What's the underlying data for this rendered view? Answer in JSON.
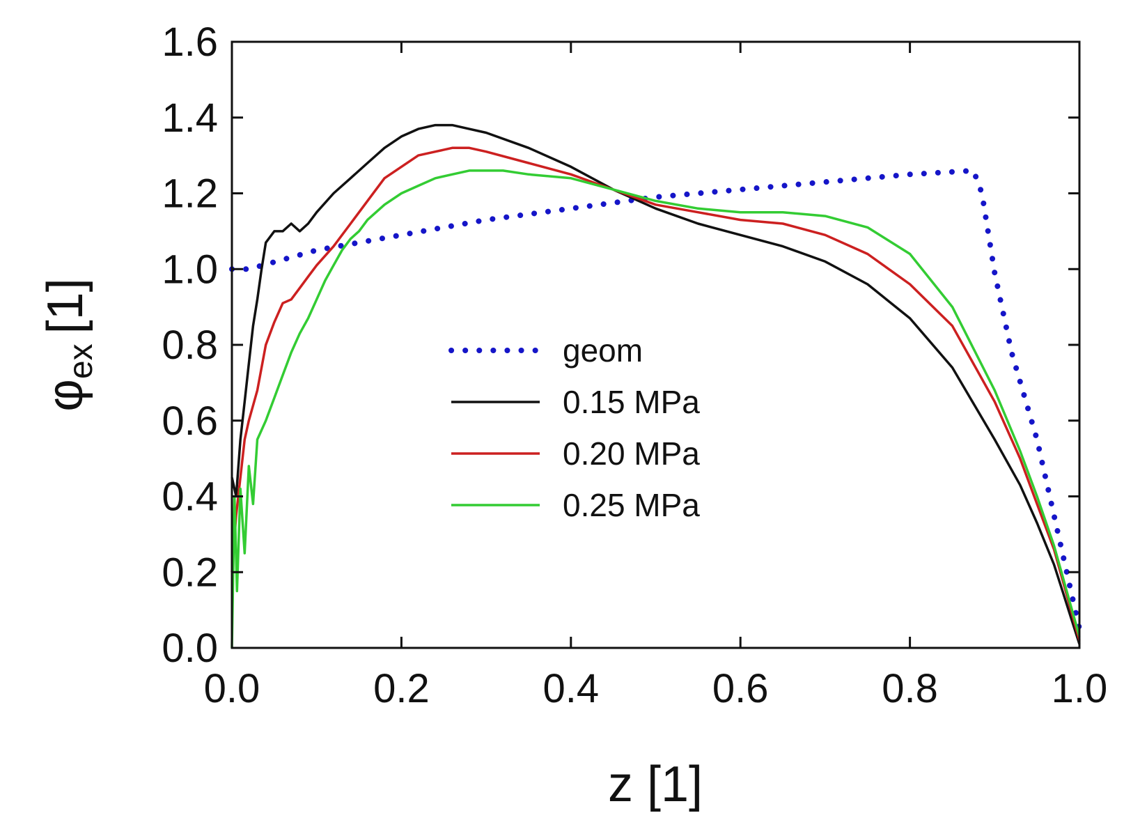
{
  "chart_data": {
    "type": "line",
    "title": "",
    "xlabel": "z [1]",
    "ylabel_main": "φ",
    "ylabel_sub": "ex",
    "ylabel_unit": "[1]",
    "xlim": [
      0.0,
      1.0
    ],
    "ylim": [
      0.0,
      1.6
    ],
    "xticks": [
      "0.0",
      "0.2",
      "0.4",
      "0.6",
      "0.8",
      "1.0"
    ],
    "yticks": [
      "0.0",
      "0.2",
      "0.4",
      "0.6",
      "0.8",
      "1.0",
      "1.2",
      "1.4",
      "1.6"
    ],
    "grid": false,
    "legend_position": "center",
    "series": [
      {
        "name": "geom",
        "color": "#1515c8",
        "style": "dotted",
        "x": [
          0.0,
          0.02,
          0.1,
          0.2,
          0.3,
          0.4,
          0.5,
          0.6,
          0.7,
          0.8,
          0.875,
          0.885,
          0.9,
          0.92,
          0.95,
          0.97,
          1.0
        ],
        "y": [
          1.0,
          1.0,
          1.05,
          1.09,
          1.13,
          1.16,
          1.19,
          1.21,
          1.23,
          1.25,
          1.26,
          1.2,
          0.99,
          0.78,
          0.55,
          0.35,
          0.05
        ]
      },
      {
        "name": "0.15 MPa",
        "color": "#111111",
        "style": "solid",
        "x": [
          0.0,
          0.005,
          0.01,
          0.015,
          0.02,
          0.025,
          0.03,
          0.035,
          0.04,
          0.05,
          0.06,
          0.07,
          0.08,
          0.09,
          0.1,
          0.12,
          0.14,
          0.16,
          0.18,
          0.2,
          0.22,
          0.24,
          0.26,
          0.28,
          0.3,
          0.35,
          0.4,
          0.45,
          0.5,
          0.55,
          0.6,
          0.65,
          0.7,
          0.75,
          0.8,
          0.85,
          0.9,
          0.93,
          0.95,
          0.97,
          0.98,
          0.99,
          1.0
        ],
        "y": [
          0.45,
          0.4,
          0.55,
          0.65,
          0.75,
          0.85,
          0.92,
          1.0,
          1.07,
          1.1,
          1.1,
          1.12,
          1.1,
          1.12,
          1.15,
          1.2,
          1.24,
          1.28,
          1.32,
          1.35,
          1.37,
          1.38,
          1.38,
          1.37,
          1.36,
          1.32,
          1.27,
          1.21,
          1.16,
          1.12,
          1.09,
          1.06,
          1.02,
          0.96,
          0.87,
          0.74,
          0.55,
          0.43,
          0.33,
          0.22,
          0.15,
          0.08,
          0.01
        ]
      },
      {
        "name": "0.20 MPa",
        "color": "#cc2020",
        "style": "solid",
        "x": [
          0.0,
          0.005,
          0.01,
          0.015,
          0.02,
          0.03,
          0.04,
          0.05,
          0.06,
          0.07,
          0.08,
          0.09,
          0.1,
          0.12,
          0.14,
          0.16,
          0.18,
          0.2,
          0.22,
          0.24,
          0.26,
          0.28,
          0.3,
          0.35,
          0.4,
          0.45,
          0.5,
          0.55,
          0.6,
          0.65,
          0.7,
          0.75,
          0.8,
          0.85,
          0.9,
          0.93,
          0.95,
          0.97,
          0.98,
          0.99,
          1.0
        ],
        "y": [
          0.2,
          0.35,
          0.45,
          0.55,
          0.6,
          0.68,
          0.8,
          0.86,
          0.91,
          0.92,
          0.95,
          0.98,
          1.01,
          1.06,
          1.12,
          1.18,
          1.24,
          1.27,
          1.3,
          1.31,
          1.32,
          1.32,
          1.31,
          1.28,
          1.25,
          1.21,
          1.17,
          1.15,
          1.13,
          1.12,
          1.09,
          1.04,
          0.96,
          0.85,
          0.65,
          0.5,
          0.38,
          0.26,
          0.18,
          0.1,
          0.02
        ]
      },
      {
        "name": "0.25 MPa",
        "color": "#33cc33",
        "style": "solid",
        "x": [
          0.0,
          0.003,
          0.006,
          0.01,
          0.015,
          0.02,
          0.025,
          0.03,
          0.04,
          0.05,
          0.06,
          0.07,
          0.08,
          0.09,
          0.1,
          0.11,
          0.12,
          0.13,
          0.14,
          0.15,
          0.16,
          0.18,
          0.2,
          0.22,
          0.24,
          0.26,
          0.28,
          0.3,
          0.32,
          0.35,
          0.4,
          0.45,
          0.5,
          0.55,
          0.6,
          0.65,
          0.7,
          0.75,
          0.8,
          0.85,
          0.9,
          0.93,
          0.95,
          0.97,
          0.98,
          0.99,
          1.0
        ],
        "y": [
          0.0,
          0.4,
          0.15,
          0.42,
          0.25,
          0.48,
          0.38,
          0.55,
          0.6,
          0.66,
          0.72,
          0.78,
          0.83,
          0.87,
          0.92,
          0.97,
          1.01,
          1.05,
          1.08,
          1.1,
          1.13,
          1.17,
          1.2,
          1.22,
          1.24,
          1.25,
          1.26,
          1.26,
          1.26,
          1.25,
          1.24,
          1.21,
          1.18,
          1.16,
          1.15,
          1.15,
          1.14,
          1.11,
          1.04,
          0.9,
          0.68,
          0.52,
          0.4,
          0.27,
          0.19,
          0.11,
          0.03
        ]
      }
    ]
  }
}
